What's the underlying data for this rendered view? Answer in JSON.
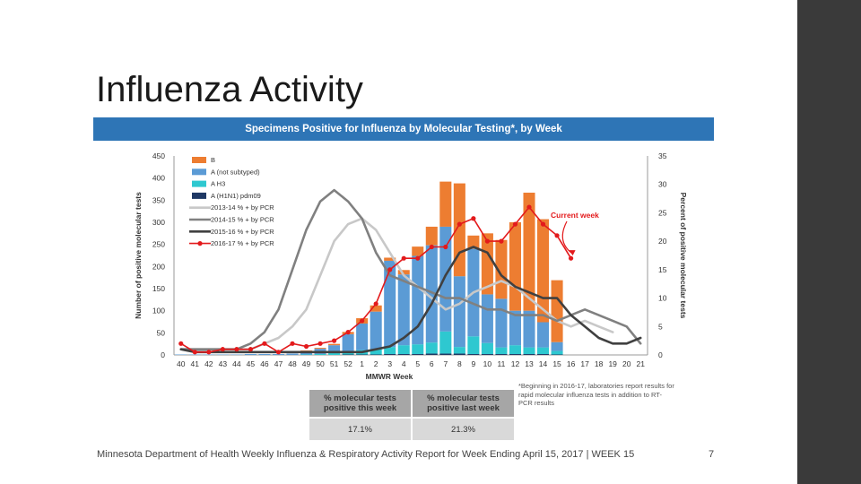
{
  "slide": {
    "title": "Influenza Activity",
    "footer": "Minnesota Department of Health Weekly Influenza & Respiratory Activity Report for Week Ending April 15, 2017 | WEEK 15",
    "page_number": "7"
  },
  "colors": {
    "header_bg": "#2e75b6",
    "B": "#ed7d31",
    "A_not_subtyped": "#5b9bd5",
    "A_H3": "#2ec8d0",
    "A_H1N1": "#1f3864",
    "s2013": "#c8c8c8",
    "s2014": "#808080",
    "s2015": "#404040",
    "s2016": "#e31a1c",
    "dark_band": "#3a3a3a"
  },
  "chart_data": {
    "type": "bar",
    "title": "Specimens Positive for Influenza by Molecular Testing*, by Week",
    "xlabel": "MMWR Week",
    "ylabel": "Number of positive molecular tests",
    "y2label": "Percent of positive molecular tests",
    "ylim": [
      0,
      450
    ],
    "y2lim": [
      0,
      35
    ],
    "yticks": [
      "0",
      "50",
      "100",
      "150",
      "200",
      "250",
      "300",
      "350",
      "400",
      "450"
    ],
    "y2ticks": [
      "0",
      "5",
      "10",
      "15",
      "20",
      "25",
      "30",
      "35"
    ],
    "categories": [
      "40",
      "41",
      "42",
      "43",
      "44",
      "45",
      "46",
      "47",
      "48",
      "49",
      "50",
      "51",
      "52",
      "1",
      "2",
      "3",
      "4",
      "5",
      "6",
      "7",
      "8",
      "9",
      "10",
      "11",
      "12",
      "13",
      "14",
      "15",
      "16",
      "17",
      "18",
      "19",
      "20",
      "21"
    ],
    "stacked_series": [
      {
        "name": "A (H1N1) pdm09",
        "color_key": "A_H1N1",
        "values": [
          0,
          0,
          0,
          0,
          0,
          0,
          0,
          0,
          0,
          0,
          0,
          0,
          1,
          1,
          1,
          2,
          2,
          2,
          3,
          3,
          3,
          2,
          2,
          2,
          2,
          2,
          2,
          1,
          0,
          0,
          0,
          0,
          0,
          0
        ]
      },
      {
        "name": "A H3",
        "color_key": "A_H3",
        "values": [
          0,
          0,
          0,
          0,
          0,
          0,
          0,
          0,
          0,
          1,
          2,
          4,
          6,
          10,
          12,
          16,
          20,
          22,
          25,
          50,
          15,
          40,
          25,
          15,
          20,
          15,
          15,
          8,
          0,
          0,
          0,
          0,
          0,
          0
        ]
      },
      {
        "name": "A (not subtyped)",
        "color_key": "A_not_subtyped",
        "values": [
          1,
          1,
          1,
          1,
          1,
          2,
          2,
          2,
          3,
          8,
          12,
          18,
          40,
          60,
          85,
          195,
          160,
          200,
          220,
          237,
          160,
          198,
          110,
          110,
          78,
          83,
          57,
          20,
          0,
          0,
          0,
          0,
          0,
          0
        ]
      },
      {
        "name": "B",
        "color_key": "B",
        "values": [
          0,
          0,
          0,
          0,
          0,
          0,
          0,
          0,
          0,
          1,
          2,
          3,
          5,
          12,
          14,
          7,
          10,
          21,
          42,
          102,
          210,
          30,
          138,
          133,
          200,
          267,
          233,
          140,
          0,
          0,
          0,
          0,
          0,
          0
        ]
      }
    ],
    "line_series": [
      {
        "name": "2013-14 % + by PCR",
        "color_key": "s2013",
        "values": [
          1,
          1,
          1,
          1,
          1,
          1,
          2,
          3,
          5,
          8,
          14,
          20,
          23,
          24,
          22,
          18,
          14,
          12,
          10,
          8,
          9,
          11,
          12,
          13,
          12,
          10,
          8,
          6,
          5,
          6,
          5,
          4,
          null,
          null
        ]
      },
      {
        "name": "2014-15 % + by PCR",
        "color_key": "s2014",
        "values": [
          1,
          1,
          1,
          1,
          1,
          2,
          4,
          8,
          15,
          22,
          27,
          29,
          27,
          24,
          18,
          14,
          13,
          12,
          11,
          10,
          10,
          9,
          8,
          8,
          7,
          7,
          7,
          6,
          7,
          8,
          7,
          6,
          5,
          2
        ]
      },
      {
        "name": "2015-16 % + by PCR",
        "color_key": "s2015",
        "values": [
          1,
          0.5,
          0.5,
          0.5,
          0.5,
          0.5,
          0.5,
          0.5,
          0.5,
          0.5,
          0.5,
          0.5,
          0.5,
          0.5,
          1,
          1.5,
          3,
          5,
          9,
          14,
          18,
          19,
          18,
          14,
          12,
          11,
          10,
          10,
          7,
          5,
          3,
          2,
          2,
          3
        ]
      },
      {
        "name": "2016-17 % + by PCR",
        "color_key": "s2016",
        "values": [
          2,
          0.5,
          0.5,
          1,
          1,
          1,
          2,
          0.5,
          2,
          1.5,
          2,
          2.5,
          4,
          6,
          9,
          15,
          17,
          17,
          19,
          19,
          23,
          24,
          20,
          20,
          23,
          26,
          23,
          21,
          17,
          null,
          null,
          null,
          null,
          null
        ]
      }
    ],
    "legend": [
      "B",
      "A (not subtyped)",
      "A H3",
      "A (H1N1) pdm09",
      "2013-14 % + by PCR",
      "2014-15 % + by PCR",
      "2015-16 % + by PCR",
      "2016-17 % + by PCR"
    ],
    "annotation": "Current week"
  },
  "summary": {
    "col1_header": "% molecular tests positive this week",
    "col2_header": "% molecular tests positive last week",
    "col1_value": "17.1%",
    "col2_value": "21.3%"
  },
  "footnote": "*Beginning in 2016-17, laboratories report results for rapid molecular influenza tests in addition to RT-PCR results"
}
